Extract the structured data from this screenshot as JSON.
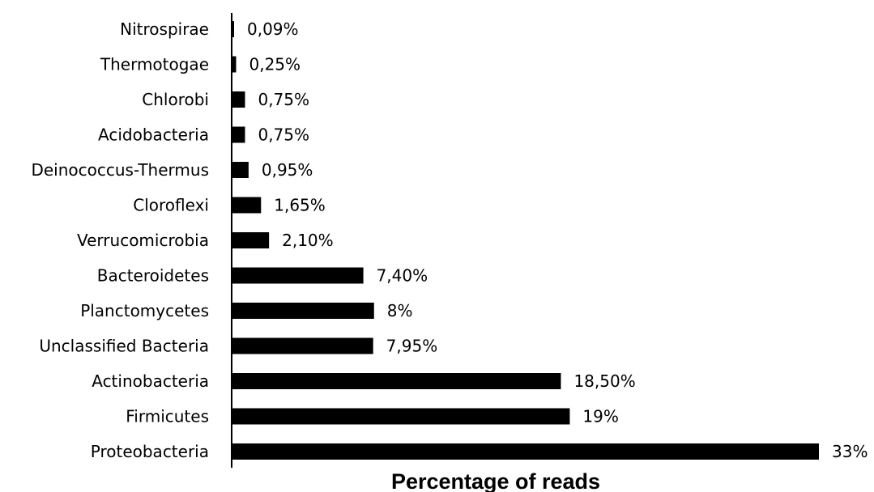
{
  "chart_data": {
    "type": "bar",
    "orientation": "horizontal",
    "xlabel": "Percentage of reads",
    "ylabel": "",
    "title": "",
    "xlim": [
      0,
      33
    ],
    "grid": false,
    "legend": "none",
    "bar_color": "#000000",
    "categories": [
      "Nitrospirae",
      "Thermotogae",
      "Chlorobi",
      "Acidobacteria",
      "Deinococcus-Thermus",
      "Cloroflexi",
      "Verrucomicrobia",
      "Bacteroidetes",
      "Planctomycetes",
      "Unclassified Bacteria",
      "Actinobacteria",
      "Firmicutes",
      "Proteobacteria"
    ],
    "values": [
      0.09,
      0.25,
      0.75,
      0.75,
      0.95,
      1.65,
      2.1,
      7.4,
      8,
      7.95,
      18.5,
      19,
      33
    ],
    "data_labels": [
      "0,09%",
      "0,25%",
      "0,75%",
      "0,75%",
      "0,95%",
      "1,65%",
      "2,10%",
      "7,40%",
      "8%",
      "7,95%",
      "18,50%",
      "19%",
      "33%"
    ]
  }
}
